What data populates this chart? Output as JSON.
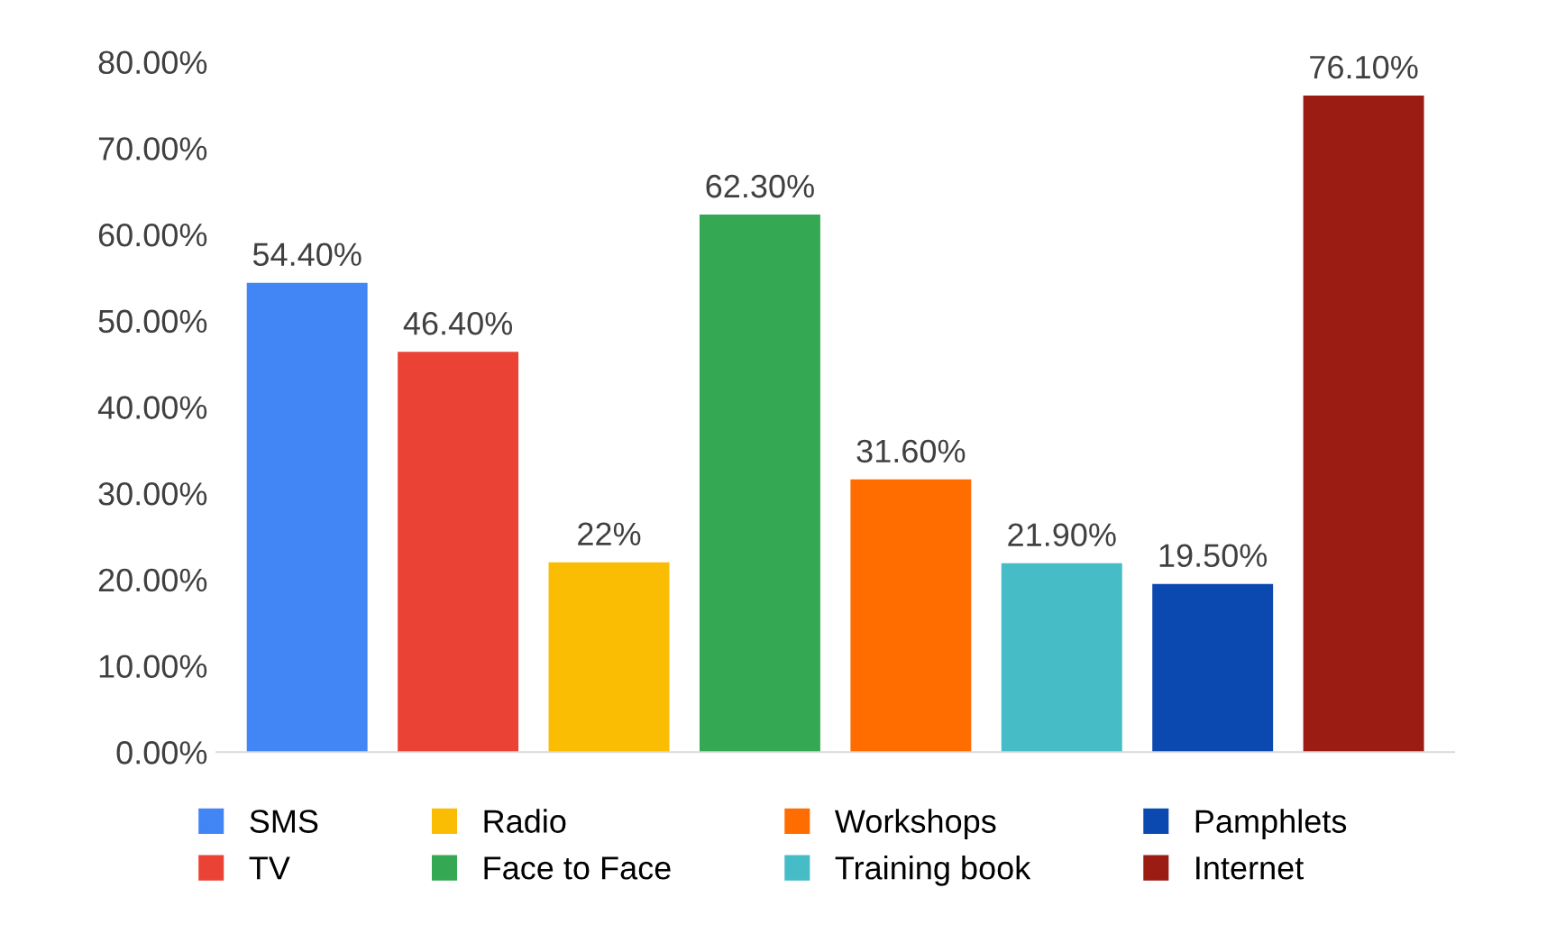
{
  "chart_data": {
    "type": "bar",
    "categories": [
      null,
      null,
      null,
      null,
      null,
      null,
      null,
      null
    ],
    "series": [
      {
        "name": "SMS",
        "color": "#4285f4",
        "values": [
          54.4,
          null,
          null,
          null,
          null,
          null,
          null,
          null
        ],
        "value_labels": [
          "54.40%",
          null,
          null,
          null,
          null,
          null,
          null,
          null
        ]
      },
      {
        "name": "TV",
        "color": "#ea4335",
        "values": [
          null,
          46.4,
          null,
          null,
          null,
          null,
          null,
          null
        ],
        "value_labels": [
          null,
          "46.40%",
          null,
          null,
          null,
          null,
          null,
          null
        ]
      },
      {
        "name": "Radio",
        "color": "#fbbc04",
        "values": [
          null,
          null,
          22,
          null,
          null,
          null,
          null,
          null
        ],
        "value_labels": [
          null,
          null,
          "22%",
          null,
          null,
          null,
          null,
          null
        ]
      },
      {
        "name": "Face to Face",
        "color": "#34a853",
        "values": [
          null,
          null,
          null,
          62.3,
          null,
          null,
          null,
          null
        ],
        "value_labels": [
          null,
          null,
          null,
          "62.30%",
          null,
          null,
          null,
          null
        ]
      },
      {
        "name": "Workshops",
        "color": "#ff6d01",
        "values": [
          null,
          null,
          null,
          null,
          31.6,
          null,
          null,
          null
        ],
        "value_labels": [
          null,
          null,
          null,
          null,
          "31.60%",
          null,
          null,
          null
        ]
      },
      {
        "name": "Training book",
        "color": "#46bdc6",
        "values": [
          null,
          null,
          null,
          null,
          null,
          21.9,
          null,
          null
        ],
        "value_labels": [
          null,
          null,
          null,
          null,
          null,
          "21.90%",
          null,
          null
        ]
      },
      {
        "name": "Pamphlets",
        "color": "#0b49b0",
        "values": [
          null,
          null,
          null,
          null,
          null,
          null,
          19.5,
          null
        ],
        "value_labels": [
          null,
          null,
          null,
          null,
          null,
          null,
          "19.50%",
          null
        ]
      },
      {
        "name": "Internet",
        "color": "#9a1c12",
        "values": [
          null,
          null,
          null,
          null,
          null,
          null,
          null,
          76.1
        ],
        "value_labels": [
          null,
          null,
          null,
          null,
          null,
          null,
          null,
          "76.10%"
        ]
      }
    ],
    "ylim": [
      0,
      80
    ],
    "yticks": [
      {
        "value": 0,
        "label": "0.00%"
      },
      {
        "value": 10,
        "label": "10.00%"
      },
      {
        "value": 20,
        "label": "20.00%"
      },
      {
        "value": 30,
        "label": "30.00%"
      },
      {
        "value": 40,
        "label": "40.00%"
      },
      {
        "value": 50,
        "label": "50.00%"
      },
      {
        "value": 60,
        "label": "60.00%"
      },
      {
        "value": 70,
        "label": "70.00%"
      },
      {
        "value": 80,
        "label": "80.00%"
      }
    ],
    "grid": false,
    "legend": "bottom"
  }
}
